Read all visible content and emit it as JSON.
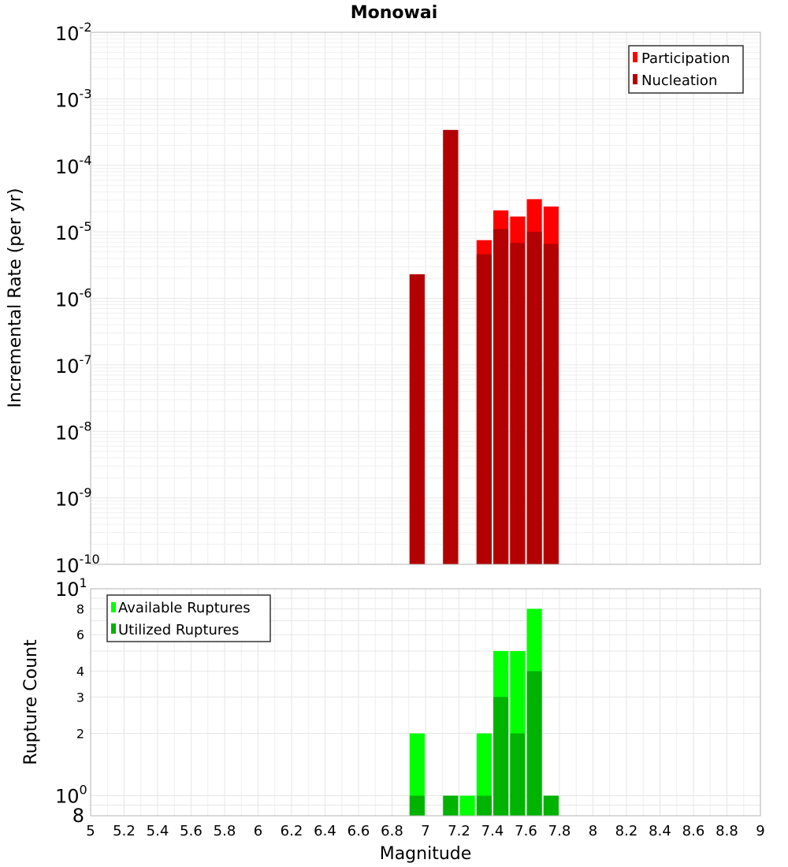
{
  "chart_data": [
    {
      "type": "bar",
      "title": "Monowai",
      "xlabel": "",
      "ylabel": "Incremental Rate (per yr)",
      "yscale": "log",
      "ylim": [
        1e-10,
        0.01
      ],
      "xlim": [
        5,
        9
      ],
      "y_tick_labels": [
        {
          "base": "10",
          "exp": "-2",
          "value": 0.01
        },
        {
          "base": "10",
          "exp": "-3",
          "value": 0.001
        },
        {
          "base": "10",
          "exp": "-4",
          "value": 0.0001
        },
        {
          "base": "10",
          "exp": "-5",
          "value": 1e-05
        },
        {
          "base": "10",
          "exp": "-6",
          "value": 1e-06
        },
        {
          "base": "10",
          "exp": "-7",
          "value": 1e-07
        },
        {
          "base": "10",
          "exp": "-8",
          "value": 1e-08
        },
        {
          "base": "10",
          "exp": "-9",
          "value": 1e-09
        },
        {
          "base": "10",
          "exp": "-10",
          "value": 1e-10
        }
      ],
      "bar_width": 0.09,
      "legend_position": "top-right",
      "series": [
        {
          "name": "Participation",
          "color": "#ff0000",
          "x": [
            6.95,
            7.15,
            7.35,
            7.45,
            7.55,
            7.65,
            7.75
          ],
          "values": [
            2.3e-06,
            0.00034,
            7.5e-06,
            2.1e-05,
            1.7e-05,
            3.1e-05,
            2.4e-05
          ]
        },
        {
          "name": "Nucleation",
          "color": "#b30000",
          "x": [
            6.95,
            7.15,
            7.35,
            7.45,
            7.55,
            7.65,
            7.75
          ],
          "values": [
            2.3e-06,
            0.00034,
            4.6e-06,
            1.1e-05,
            6.8e-06,
            1e-05,
            6.6e-06
          ]
        }
      ]
    },
    {
      "type": "bar",
      "title": "",
      "xlabel": "Magnitude",
      "ylabel": "Rupture Count",
      "yscale": "log",
      "ylim": [
        0.8,
        10
      ],
      "xlim": [
        5,
        9
      ],
      "x_ticks": [
        "5",
        "5.2",
        "5.4",
        "5.6",
        "5.8",
        "6",
        "6.2",
        "6.4",
        "6.6",
        "6.8",
        "7",
        "7.2",
        "7.4",
        "7.6",
        "7.8",
        "8",
        "8.2",
        "8.4",
        "8.6",
        "8.8",
        "9"
      ],
      "y_ticks_small": [
        {
          "label": "8",
          "value": 8
        },
        {
          "label": "6",
          "value": 6
        },
        {
          "label": "4",
          "value": 4
        },
        {
          "label": "3",
          "value": 3
        },
        {
          "label": "2",
          "value": 2
        }
      ],
      "y_tick_big": [
        {
          "base": "10",
          "exp": "1",
          "value": 10
        },
        {
          "base": "10",
          "exp": "0",
          "value": 1
        }
      ],
      "y_bottom_label": {
        "label": "8",
        "value": 0.8
      },
      "bar_width": 0.09,
      "legend_position": "top-left",
      "series": [
        {
          "name": "Available Ruptures",
          "color": "#00ff00",
          "x": [
            6.95,
            7.15,
            7.25,
            7.35,
            7.45,
            7.55,
            7.65,
            7.75
          ],
          "values": [
            2,
            1,
            1,
            2,
            5,
            5,
            8,
            1
          ]
        },
        {
          "name": "Utilized Ruptures",
          "color": "#00b300",
          "x": [
            6.95,
            7.15,
            7.25,
            7.35,
            7.45,
            7.55,
            7.65,
            7.75
          ],
          "values": [
            1,
            1,
            0,
            1,
            3,
            2,
            4,
            1
          ]
        }
      ]
    }
  ]
}
